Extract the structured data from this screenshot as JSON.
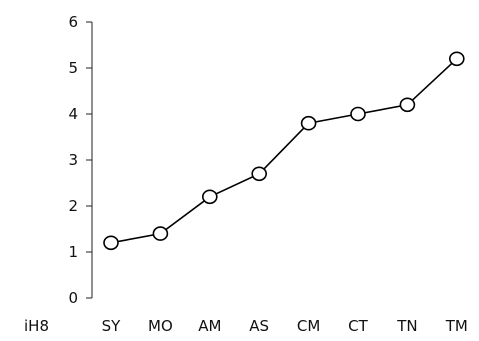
{
  "chart_data": {
    "type": "line",
    "categories": [
      "SY",
      "MO",
      "AM",
      "AS",
      "CM",
      "CT",
      "TN",
      "TM"
    ],
    "series": [
      {
        "values": [
          1.2,
          1.4,
          2.2,
          2.7,
          3.8,
          4.0,
          4.2,
          5.2
        ]
      }
    ],
    "ylim": [
      0,
      6
    ],
    "yticks": [
      0,
      1,
      2,
      3,
      4,
      5,
      6
    ],
    "xlabel": "iH8",
    "ylabel": "",
    "title": "",
    "grid": false,
    "marker": "open-circle"
  }
}
